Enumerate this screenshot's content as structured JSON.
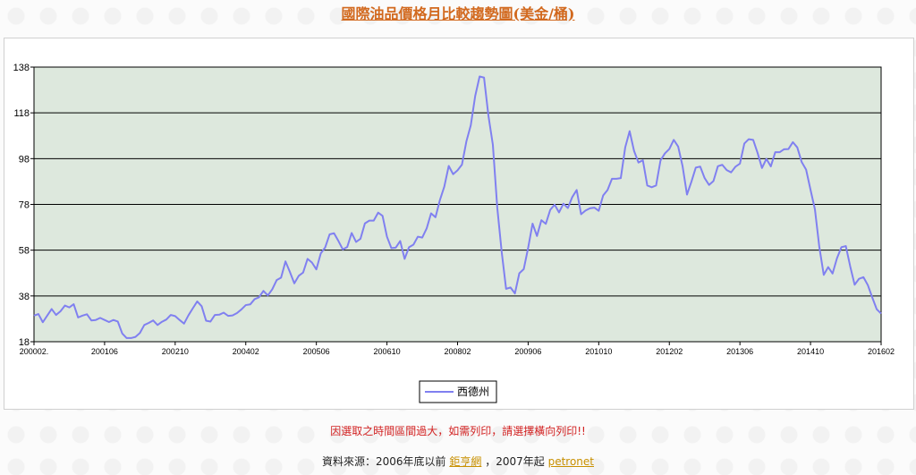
{
  "page": {
    "title": "國際油品價格月比較趨勢圖(美金/桶)",
    "notice": "因選取之時間區間過大，如需列印，請選擇橫向列印!!",
    "source_prefix": "資料來源：2006年底以前",
    "source_link1": "鉅亨網",
    "source_middle": "，2007年起",
    "source_link2": "petronet"
  },
  "colors": {
    "line": "#8080f0",
    "plot_bg": "#dde8dd",
    "grid": "#000000"
  },
  "chart_data": {
    "type": "line",
    "title": "國際油品價格月比較趨勢圖(美金/桶)",
    "xlabel": "",
    "ylabel": "",
    "ylim": [
      18,
      138
    ],
    "yticks": [
      18,
      38,
      58,
      78,
      98,
      118,
      138
    ],
    "xtick_labels": [
      "200002.",
      "200106",
      "200210",
      "200402",
      "200506",
      "200610",
      "200802",
      "200906",
      "201010",
      "201202",
      "201306",
      "201410",
      "201602"
    ],
    "grid": true,
    "legend_position": "bottom",
    "series": [
      {
        "name": "西德州",
        "start": "2000-02",
        "end": "2016-02",
        "values": [
          29.4,
          30.1,
          26.5,
          29.4,
          32.3,
          29.7,
          31.3,
          33.8,
          33.0,
          34.4,
          28.6,
          29.4,
          30.0,
          27.3,
          27.5,
          28.4,
          27.5,
          26.6,
          27.5,
          26.8,
          21.6,
          19.6,
          19.6,
          20.1,
          21.8,
          25.3,
          26.2,
          27.3,
          25.3,
          26.7,
          27.7,
          29.7,
          29.2,
          27.5,
          25.9,
          29.5,
          32.6,
          35.6,
          33.5,
          27.2,
          26.8,
          29.7,
          29.8,
          30.7,
          29.3,
          29.5,
          30.5,
          32.1,
          34.0,
          34.3,
          36.6,
          37.4,
          40.2,
          38.2,
          40.9,
          44.9,
          46.0,
          53.1,
          48.5,
          43.5,
          46.8,
          48.2,
          54.2,
          52.6,
          49.6,
          56.6,
          59.2,
          64.9,
          65.4,
          62.0,
          58.3,
          59.4,
          65.5,
          61.6,
          63.0,
          69.7,
          70.9,
          70.9,
          74.4,
          73.0,
          63.9,
          58.9,
          59.1,
          62.0,
          54.2,
          59.3,
          60.4,
          63.9,
          63.5,
          67.5,
          74.1,
          72.4,
          79.9,
          85.8,
          94.8,
          91.2,
          92.9,
          95.4,
          105.5,
          112.6,
          125.4,
          133.9,
          133.4,
          116.7,
          104.1,
          76.6,
          57.3,
          41.1,
          41.7,
          39.1,
          47.9,
          49.7,
          59.0,
          69.6,
          64.2,
          71.1,
          69.5,
          75.6,
          77.9,
          74.5,
          78.3,
          76.4,
          81.2,
          84.3,
          73.7,
          75.3,
          76.3,
          76.6,
          75.2,
          81.9,
          84.3,
          89.2,
          89.2,
          89.5,
          102.9,
          110.0,
          101.4,
          96.3,
          97.3,
          86.3,
          85.5,
          86.3,
          97.2,
          100.3,
          102.2,
          106.2,
          103.3,
          94.7,
          82.3,
          87.9,
          94.1,
          94.5,
          89.5,
          86.5,
          88.2,
          94.7,
          95.3,
          93.0,
          92.0,
          94.5,
          95.8,
          104.6,
          106.5,
          106.2,
          100.5,
          93.9,
          97.9,
          94.6,
          100.8,
          100.8,
          102.1,
          102.2,
          105.2,
          102.9,
          96.5,
          93.2,
          84.4,
          75.8,
          59.3,
          47.2,
          50.6,
          47.8,
          54.5,
          59.3,
          59.8,
          50.9,
          42.9,
          45.5,
          46.2,
          42.7,
          37.3,
          32.2,
          30.3
        ]
      }
    ]
  }
}
